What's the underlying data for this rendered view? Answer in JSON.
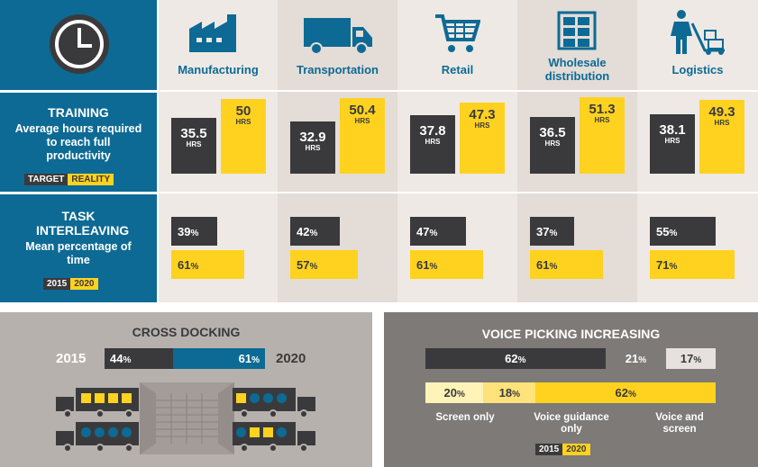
{
  "industries": [
    {
      "name": "Manufacturing",
      "icon": "factory-icon",
      "training_target": 35.5,
      "training_reality": 50,
      "interleave_2015": 39,
      "interleave_2020": 61
    },
    {
      "name": "Transportation",
      "icon": "truck-icon",
      "training_target": 32.9,
      "training_reality": 50.4,
      "interleave_2015": 42,
      "interleave_2020": 57
    },
    {
      "name": "Retail",
      "icon": "shopping-cart-icon",
      "training_target": 37.8,
      "training_reality": 47.3,
      "interleave_2015": 47,
      "interleave_2020": 61
    },
    {
      "name": "Wholesale distribution",
      "icon": "shelf-boxes-icon",
      "training_target": 36.5,
      "training_reality": 51.3,
      "interleave_2015": 37,
      "interleave_2020": 61
    },
    {
      "name": "Logistics",
      "icon": "worker-hand-truck-icon",
      "training_target": 38.1,
      "training_reality": 49.3,
      "interleave_2015": 55,
      "interleave_2020": 71
    }
  ],
  "unit_hrs": "HRS",
  "training": {
    "title": "TRAINING",
    "subtitle": "Average hours required to reach full productivity",
    "legend_target": "TARGET",
    "legend_reality": "REALITY"
  },
  "interleaving": {
    "title": "TASK INTERLEAVING",
    "subtitle": "Mean percentage of time",
    "legend_2015": "2015",
    "legend_2020": "2020"
  },
  "cross_docking": {
    "title": "CROSS DOCKING",
    "label_2015": "2015",
    "label_2020": "2020",
    "value_2015": 44,
    "value_2020": 61
  },
  "voice_picking": {
    "title": "VOICE PICKING INCREASING",
    "rows": [
      {
        "year": "2015",
        "values": [
          62,
          21,
          17
        ]
      },
      {
        "year": "2020",
        "values": [
          20,
          18,
          62
        ]
      }
    ],
    "categories": [
      "Screen only",
      "Voice guidance only",
      "Voice and screen"
    ],
    "legend_2015": "2015",
    "legend_2020": "2020"
  },
  "chart_data": [
    {
      "type": "bar",
      "title": "TRAINING",
      "subtitle": "Average hours required to reach full productivity",
      "categories": [
        "Manufacturing",
        "Transportation",
        "Retail",
        "Wholesale distribution",
        "Logistics"
      ],
      "series": [
        {
          "name": "TARGET",
          "values": [
            35.5,
            32.9,
            37.8,
            36.5,
            38.1
          ]
        },
        {
          "name": "REALITY",
          "values": [
            50,
            50.4,
            47.3,
            51.3,
            49.3
          ]
        }
      ],
      "ylabel": "HRS"
    },
    {
      "type": "bar",
      "title": "TASK INTERLEAVING",
      "subtitle": "Mean percentage of time",
      "categories": [
        "Manufacturing",
        "Transportation",
        "Retail",
        "Wholesale distribution",
        "Logistics"
      ],
      "series": [
        {
          "name": "2015",
          "values": [
            39,
            42,
            47,
            37,
            55
          ]
        },
        {
          "name": "2020",
          "values": [
            61,
            57,
            61,
            61,
            71
          ]
        }
      ]
    },
    {
      "type": "bar",
      "title": "CROSS DOCKING",
      "categories": [
        "2015",
        "2020"
      ],
      "values": [
        44,
        61
      ]
    },
    {
      "type": "bar",
      "title": "VOICE PICKING INCREASING",
      "categories": [
        "Screen only",
        "Voice guidance only",
        "Voice and screen"
      ],
      "series": [
        {
          "name": "2015",
          "values": [
            62,
            21,
            17
          ]
        },
        {
          "name": "2020",
          "values": [
            20,
            18,
            62
          ]
        }
      ]
    }
  ],
  "colors": {
    "blue": "#0d6a94",
    "dark": "#3a3a3c",
    "yellow": "#ffd21f",
    "bg_light": "#eee9e5",
    "bg_dark": "#e3dcd7",
    "panel_left": "#b7b1ae",
    "panel_right": "#7d7a78"
  }
}
